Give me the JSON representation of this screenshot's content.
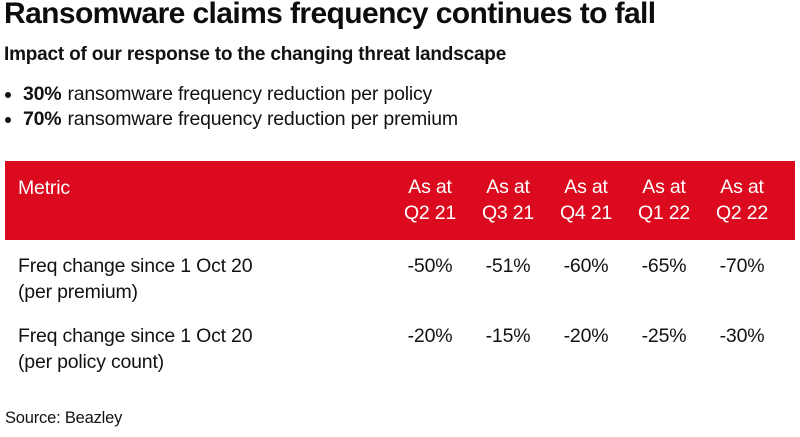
{
  "title": "Ransomware claims frequency continues to fall",
  "subtitle": "Impact of our response to the changing threat landscape",
  "bullets": [
    {
      "bold": "30%",
      "text": "ransomware frequency reduction per policy"
    },
    {
      "bold": "70%",
      "text": "ransomware frequency reduction per premium"
    }
  ],
  "table": {
    "header_metric": "Metric",
    "columns": [
      {
        "line1": "As at",
        "line2": "Q2 21"
      },
      {
        "line1": "As at",
        "line2": "Q3 21"
      },
      {
        "line1": "As at",
        "line2": "Q4 21"
      },
      {
        "line1": "As at",
        "line2": "Q1 22"
      },
      {
        "line1": "As at",
        "line2": "Q2 22"
      }
    ],
    "rows": [
      {
        "label_line1": "Freq change since 1 Oct 20",
        "label_line2": "(per premium)",
        "values": [
          "-50%",
          "-51%",
          "-60%",
          "-65%",
          "-70%"
        ]
      },
      {
        "label_line1": "Freq change since 1 Oct 20",
        "label_line2": "(per policy count)",
        "values": [
          "-20%",
          "-15%",
          "-20%",
          "-25%",
          "-30%"
        ]
      }
    ]
  },
  "source": "Source: Beazley",
  "colors": {
    "header_red": "#DC0A1E",
    "text": "#121212",
    "header_text": "#ffffff"
  },
  "chart_data": {
    "type": "table",
    "title": "Ransomware claims frequency continues to fall",
    "columns": [
      "Metric",
      "As at Q2 21",
      "As at Q3 21",
      "As at Q4 21",
      "As at Q1 22",
      "As at Q2 22"
    ],
    "rows": [
      [
        "Freq change since 1 Oct 20 (per premium)",
        "-50%",
        "-51%",
        "-60%",
        "-65%",
        "-70%"
      ],
      [
        "Freq change since 1 Oct 20 (per policy count)",
        "-20%",
        "-15%",
        "-20%",
        "-25%",
        "-30%"
      ]
    ]
  }
}
